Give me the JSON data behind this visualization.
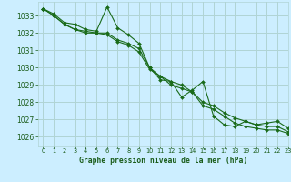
{
  "title": "Graphe pression niveau de la mer (hPa)",
  "bg_color": "#cceeff",
  "grid_color": "#b0d4d4",
  "line_color": "#1a6b1a",
  "text_color": "#1a5c1a",
  "xlim": [
    -0.5,
    23
  ],
  "ylim": [
    1025.5,
    1033.8
  ],
  "yticks": [
    1026,
    1027,
    1028,
    1029,
    1030,
    1031,
    1032,
    1033
  ],
  "xticks": [
    0,
    1,
    2,
    3,
    4,
    5,
    6,
    7,
    8,
    9,
    10,
    11,
    12,
    13,
    14,
    15,
    16,
    17,
    18,
    19,
    20,
    21,
    22,
    23
  ],
  "series": [
    [
      1033.4,
      1033.1,
      1032.6,
      1032.5,
      1032.2,
      1032.1,
      1033.5,
      1032.3,
      1031.9,
      1031.4,
      1030.0,
      1029.3,
      1029.2,
      1028.3,
      1028.7,
      1029.2,
      1027.2,
      1026.7,
      1026.6,
      1026.9,
      1026.7,
      1026.8,
      1026.9,
      1026.5
    ],
    [
      1033.4,
      1033.0,
      1032.5,
      1032.2,
      1032.1,
      1032.0,
      1032.0,
      1031.6,
      1031.4,
      1031.1,
      1030.0,
      1029.5,
      1029.2,
      1029.0,
      1028.6,
      1028.0,
      1027.8,
      1027.4,
      1027.1,
      1026.9,
      1026.7,
      1026.6,
      1026.6,
      1026.3
    ],
    [
      1033.4,
      1033.0,
      1032.5,
      1032.2,
      1032.0,
      1032.0,
      1031.9,
      1031.5,
      1031.3,
      1030.9,
      1029.9,
      1029.5,
      1029.0,
      1028.8,
      1028.6,
      1027.8,
      1027.6,
      1027.2,
      1026.8,
      1026.6,
      1026.5,
      1026.4,
      1026.4,
      1026.2
    ]
  ],
  "xlabel_fontsize": 5.8,
  "ytick_fontsize": 5.5,
  "xtick_fontsize": 4.8
}
